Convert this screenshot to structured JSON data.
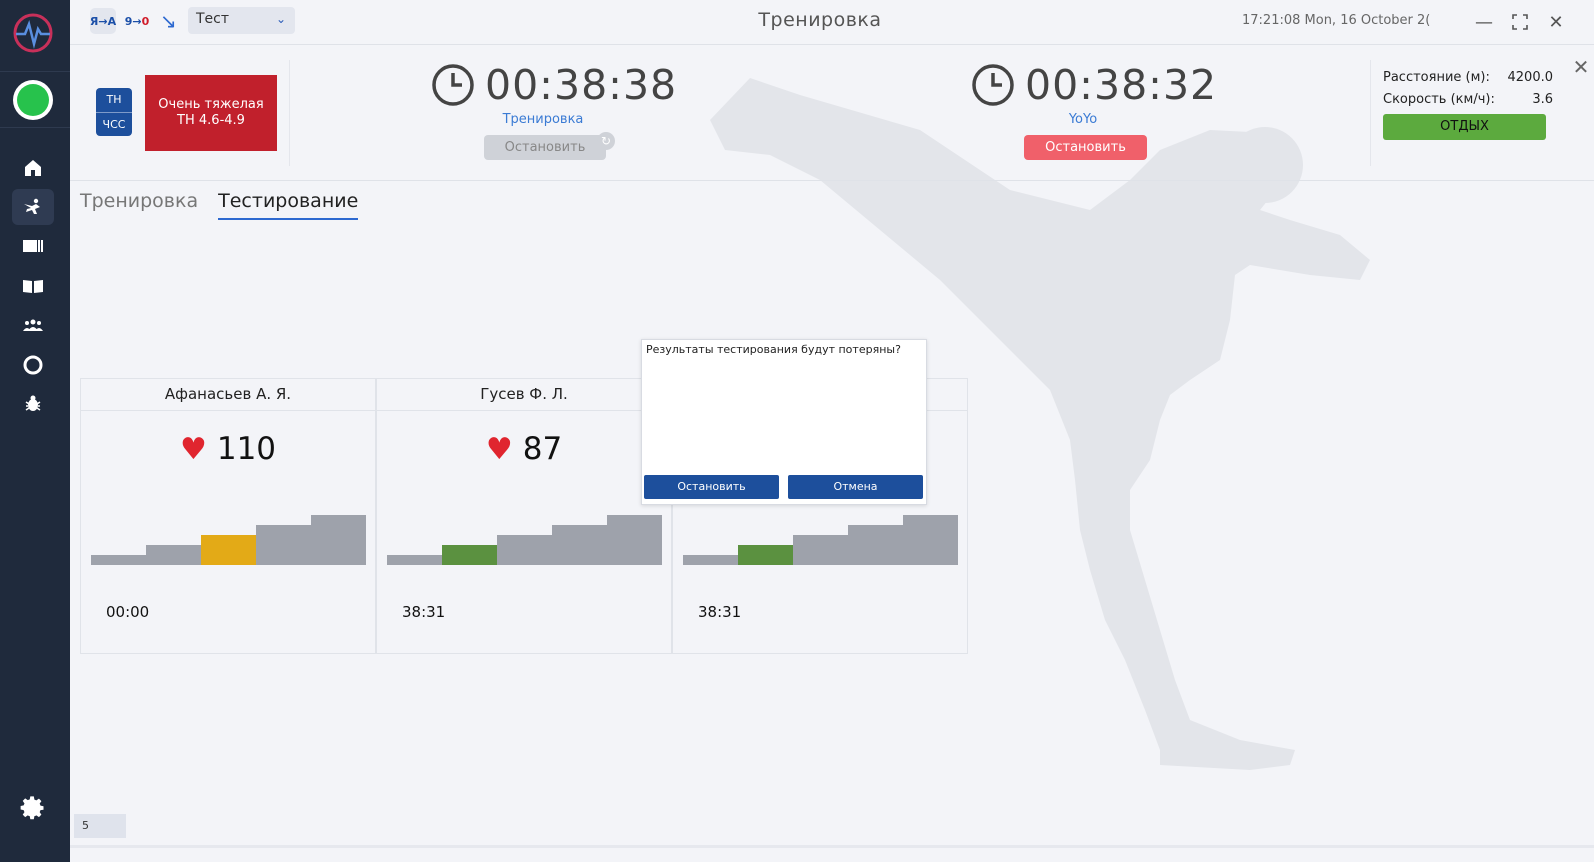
{
  "topbar": {
    "chip1": "Я→А",
    "chip2_left": "9→",
    "chip2_right": "0",
    "select_value": "Тест",
    "title": "Тренировка",
    "datetime": "17:21:08  Mon, 16 October 2("
  },
  "header": {
    "th_label": "ТН",
    "hr_label": "ЧСС",
    "zone_line1": "Очень тяжелая",
    "zone_line2": "ТН 4.6-4.9",
    "timer1": {
      "time": "00:38:38",
      "label": "Тренировка",
      "button": "Остановить"
    },
    "timer2": {
      "time": "00:38:32",
      "label": "YoYo",
      "button": "Остановить"
    },
    "stats": {
      "distance_label": "Расстояние (м):",
      "distance_value": "4200.0",
      "speed_label": "Скорость (км/ч):",
      "speed_value": "3.6"
    },
    "rest_button": "ОТДЫХ"
  },
  "tabs": [
    {
      "label": "Тренировка",
      "active": false
    },
    {
      "label": "Тестирование",
      "active": true
    }
  ],
  "cards": [
    {
      "name": "Афанасьев А. Я.",
      "hr": "110",
      "time": "00:00",
      "active_zone": 2,
      "active_color": "#e3aa17"
    },
    {
      "name": "Гусев Ф. Л.",
      "hr": "87",
      "time": "38:31",
      "active_zone": 1,
      "active_color": "#5b9140"
    },
    {
      "name": "",
      "hr": "",
      "time": "38:31",
      "active_zone": 1,
      "active_color": "#5b9140"
    }
  ],
  "modal": {
    "message": "Результаты тестирования будут потеряны?",
    "confirm": "Остановить",
    "cancel": "Отмена"
  },
  "page_badge": "5",
  "colors": {
    "sidebar": "#1f2a3c",
    "primary_blue": "#1d4f9c",
    "zone_red": "#c1202c",
    "rest_green": "#5caa3e",
    "stop_red": "#f0606a"
  }
}
